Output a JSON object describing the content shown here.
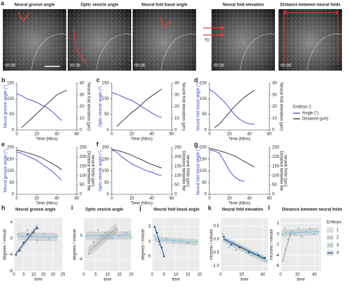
{
  "panel_a": {
    "label": "a",
    "images": [
      {
        "title": "Neural groove angle",
        "time": "00:35"
      },
      {
        "title": "Optic vesicle angle",
        "time": "00:35"
      },
      {
        "title": "Neural fold basal angle",
        "time": "00:35"
      },
      {
        "title": "Neural fold elevation",
        "time": "00:35",
        "annotation": "T0"
      },
      {
        "title": "Distance between neural folds",
        "time": "00:35"
      }
    ]
  },
  "embryo_legend": {
    "title": "Embryo",
    "items": [
      {
        "name": "1",
        "color": "#d9d9d9"
      },
      {
        "name": "2",
        "color": "#a9a9a9"
      },
      {
        "name": "3",
        "color": "#7fc4df"
      },
      {
        "name": "4",
        "color": "#1f5a99"
      }
    ]
  },
  "chart_data": [
    {
      "type": "line",
      "label": "b",
      "xlabel": "Time (Mins)",
      "ylabel": "Neural groove angle (°)",
      "y2label": [
        "Neural fold elevation (μm)"
      ],
      "x": [
        0,
        5,
        10,
        15,
        20,
        25,
        30,
        35,
        40,
        45,
        50
      ],
      "xlim": [
        0,
        60
      ],
      "xticks": [
        0,
        20,
        40,
        60
      ],
      "ylim": [
        0,
        150
      ],
      "yticks": [
        0,
        50,
        100,
        150
      ],
      "y2lim": [
        0,
        40
      ],
      "y2ticks": [
        0,
        10,
        20,
        30,
        40
      ],
      "series": [
        {
          "color": "#3c3cd8",
          "values": [
            115,
            110,
            100,
            95,
            88,
            80,
            72,
            60,
            45,
            30,
            null
          ]
        },
        {
          "color": "#222222",
          "axis": "y2",
          "values": [
            null,
            2,
            6,
            10,
            14,
            18,
            22,
            26,
            30,
            32,
            34
          ]
        }
      ]
    },
    {
      "type": "line",
      "label": "c",
      "xlabel": "Time (Mins)",
      "ylabel": "Optic vesicle angle (°)",
      "y2label": [
        "Neural fold elevation (μm)"
      ],
      "x": [
        0,
        5,
        10,
        15,
        20,
        25,
        30,
        35,
        40,
        45,
        50
      ],
      "xlim": [
        0,
        60
      ],
      "xticks": [
        0,
        20,
        40,
        60
      ],
      "ylim": [
        0,
        150
      ],
      "yticks": [
        0,
        50,
        100,
        150
      ],
      "y2lim": [
        0,
        40
      ],
      "y2ticks": [
        0,
        10,
        20,
        30,
        40
      ],
      "series": [
        {
          "color": "#3c3cd8",
          "values": [
            120,
            115,
            108,
            100,
            95,
            85,
            75,
            65,
            55,
            45,
            40
          ]
        },
        {
          "color": "#222222",
          "axis": "y2",
          "values": [
            null,
            3,
            7,
            11,
            15,
            18,
            22,
            26,
            29,
            32,
            35
          ]
        }
      ]
    },
    {
      "type": "line",
      "label": "d",
      "xlabel": "Time (Mins)",
      "ylabel": "Neural fold basal angle (°)",
      "y2label": [
        "Neural fold elevation (μm)"
      ],
      "x": [
        0,
        5,
        10,
        15,
        20,
        25,
        30,
        35,
        40,
        45,
        50
      ],
      "xlim": [
        0,
        60
      ],
      "xticks": [
        0,
        20,
        40,
        60
      ],
      "ylim": [
        0,
        150
      ],
      "yticks": [
        0,
        50,
        100,
        150
      ],
      "y2lim": [
        0,
        40
      ],
      "y2ticks": [
        0,
        10,
        20,
        30,
        40
      ],
      "legend_title": "Embryo 2",
      "series": [
        {
          "name": "Angle (°)",
          "color": "#3c3cd8",
          "values": [
            130,
            120,
            105,
            90,
            70,
            50,
            35,
            25,
            20,
            18,
            null
          ]
        },
        {
          "name": "Distance (μm)",
          "color": "#222222",
          "axis": "y2",
          "values": [
            null,
            2,
            5,
            10,
            15,
            20,
            24,
            28,
            31,
            34,
            null
          ]
        }
      ]
    },
    {
      "type": "line",
      "label": "e",
      "xlabel": "Time (Mins)",
      "ylabel": "Neural groove angle (°)",
      "y2label": [
        "Distance between the",
        "neural folds (μm)"
      ],
      "x": [
        0,
        5,
        10,
        15,
        20,
        25,
        30,
        35,
        40,
        45,
        50
      ],
      "xlim": [
        0,
        60
      ],
      "xticks": [
        0,
        20,
        40,
        60
      ],
      "ylim": [
        0,
        200
      ],
      "yticks": [
        0,
        50,
        100,
        150,
        200
      ],
      "y2lim": [
        0,
        250
      ],
      "y2ticks": [
        0,
        50,
        100,
        150,
        200,
        250
      ],
      "series": [
        {
          "color": "#3c3cd8",
          "values": [
            180,
            175,
            165,
            155,
            145,
            130,
            115,
            100,
            80,
            60,
            null
          ]
        },
        {
          "color": "#222222",
          "axis": "y2",
          "values": [
            235,
            230,
            222,
            215,
            205,
            195,
            180,
            165,
            150,
            130,
            null
          ]
        }
      ]
    },
    {
      "type": "line",
      "label": "f",
      "xlabel": "Time (Mins)",
      "ylabel": "Optic vesicle angle (°)",
      "y2label": [
        "Distance between the",
        "neural folds (μm)"
      ],
      "x": [
        0,
        5,
        10,
        15,
        20,
        25,
        30,
        35,
        40,
        45,
        50
      ],
      "xlim": [
        0,
        60
      ],
      "xticks": [
        0,
        20,
        40,
        60
      ],
      "ylim": [
        0,
        200
      ],
      "yticks": [
        0,
        50,
        100,
        150,
        200
      ],
      "y2lim": [
        0,
        250
      ],
      "y2ticks": [
        0,
        50,
        100,
        150,
        200,
        250
      ],
      "series": [
        {
          "color": "#3c3cd8",
          "values": [
            190,
            180,
            160,
            145,
            130,
            120,
            110,
            100,
            95,
            85,
            80
          ]
        },
        {
          "color": "#222222",
          "axis": "y2",
          "values": [
            240,
            235,
            228,
            218,
            208,
            195,
            185,
            170,
            160,
            150,
            140
          ]
        }
      ]
    },
    {
      "type": "line",
      "label": "g",
      "xlabel": "Time (Mins)",
      "ylabel": "Neural fold basal angle (°)",
      "y2label": [
        "Distance between the",
        "neural folds (μm)"
      ],
      "x": [
        0,
        5,
        10,
        15,
        20,
        25,
        30,
        35,
        40,
        45,
        50
      ],
      "xlim": [
        0,
        60
      ],
      "xticks": [
        0,
        20,
        40,
        60
      ],
      "ylim": [
        0,
        200
      ],
      "yticks": [
        0,
        50,
        100,
        150,
        200
      ],
      "y2lim": [
        0,
        250
      ],
      "y2ticks": [
        0,
        50,
        100,
        150,
        200,
        250
      ],
      "series": [
        {
          "color": "#3c3cd8",
          "values": [
            190,
            185,
            175,
            140,
            100,
            75,
            60,
            55,
            null,
            null,
            null
          ]
        },
        {
          "color": "#222222",
          "axis": "y2",
          "values": [
            245,
            240,
            232,
            225,
            215,
            205,
            190,
            175,
            160,
            145,
            null
          ]
        }
      ]
    },
    {
      "type": "scatter",
      "label": "h",
      "title": "Neural groove angle",
      "xlabel": "time",
      "ylabel": "degrees / minute",
      "xlim": [
        0,
        25
      ],
      "xticks": [
        0,
        5,
        10,
        15,
        20,
        25
      ],
      "ylim": [
        -8,
        5
      ],
      "yticks": [
        -8,
        -4,
        0,
        4
      ],
      "series": [
        {
          "color": "#7fc4df",
          "x": [
            2,
            5,
            7,
            9,
            12,
            15,
            18,
            22
          ],
          "values": [
            1,
            -1,
            2,
            0.5,
            -0.5,
            1,
            0,
            0.5
          ]
        },
        {
          "color": "#1f5a99",
          "x": [
            1,
            3,
            5,
            7,
            10,
            12
          ],
          "values": [
            -4,
            -3,
            -1,
            1,
            1.5,
            2.5
          ]
        }
      ]
    },
    {
      "type": "scatter",
      "label": "i",
      "title": "Optic vesicle angle",
      "xlabel": "time",
      "ylabel": "degrees / minute",
      "xlim": [
        0,
        20
      ],
      "xticks": [
        0,
        5,
        10,
        15,
        20
      ],
      "ylim": [
        -6,
        3
      ],
      "yticks": [
        -4,
        0
      ],
      "series": [
        {
          "color": "#a9a9a9",
          "x": [
            2,
            8,
            14
          ],
          "values": [
            -3,
            0,
            1
          ]
        },
        {
          "color": "#7fc4df",
          "x": [
            1,
            4,
            6,
            9,
            12,
            15,
            18,
            20
          ],
          "values": [
            0,
            -1,
            1,
            0.5,
            -0.5,
            0,
            0.5,
            -0.3
          ]
        }
      ]
    },
    {
      "type": "scatter",
      "label": "j",
      "title": "Neural fold basal angle",
      "xlabel": "time",
      "ylabel": "degrees / minute",
      "xlim": [
        0,
        20
      ],
      "xticks": [
        0,
        5,
        10,
        15,
        20
      ],
      "ylim": [
        -10,
        8
      ],
      "yticks": [
        -5,
        0,
        5
      ],
      "series": [
        {
          "color": "#7fc4df",
          "x": [
            1,
            3,
            6,
            9,
            12,
            15,
            19
          ],
          "values": [
            2,
            -1,
            1,
            0,
            0.5,
            -0.5,
            0
          ]
        },
        {
          "color": "#1f5a99",
          "x": [
            1,
            2,
            3,
            4,
            5
          ],
          "values": [
            5,
            3,
            0,
            -2,
            -5
          ]
        }
      ]
    },
    {
      "type": "scatter",
      "label": "k",
      "title": "Neural fold elevation",
      "xlabel": "time",
      "ylabel": "microns / minute",
      "xlim": [
        0,
        45
      ],
      "xticks": [
        0,
        20,
        40
      ],
      "ylim": [
        -1.2,
        0.8
      ],
      "yticks": [
        {
          "value": -1,
          "label": "-1.0"
        },
        -0.5,
        {
          "value": 0,
          "label": "0.0"
        },
        0.5
      ],
      "series": [
        {
          "color": "#7fc4df",
          "x": [
            2,
            5,
            8,
            12,
            15,
            20,
            25,
            30,
            35,
            40,
            44
          ],
          "values": [
            0.2,
            0,
            -0.3,
            -0.1,
            -0.4,
            -0.3,
            -0.5,
            -0.6,
            -0.5,
            -0.7,
            -0.8
          ]
        },
        {
          "color": "#1f5a99",
          "x": [
            3,
            10,
            18,
            27,
            36,
            42
          ],
          "values": [
            0.1,
            -0.2,
            -0.3,
            -0.5,
            -0.6,
            -0.7
          ]
        }
      ]
    },
    {
      "type": "scatter",
      "label": "l",
      "title": "Distance between neural folds",
      "xlabel": "time",
      "ylabel": "microns / minute",
      "xlim": [
        0,
        48
      ],
      "xticks": [
        0,
        20,
        40
      ],
      "ylim": [
        -7,
        3
      ],
      "yticks": [
        -6,
        -4,
        -2,
        0,
        2
      ],
      "series": [
        {
          "color": "#a9a9a9",
          "x": [
            3,
            6,
            9,
            12
          ],
          "values": [
            -5,
            -3,
            -1,
            0
          ]
        },
        {
          "color": "#7fc4df",
          "x": [
            2,
            5,
            9,
            13,
            17,
            21,
            25,
            30,
            35,
            40,
            45
          ],
          "values": [
            0,
            1,
            -1,
            0.5,
            0,
            1,
            -0.5,
            0.5,
            1,
            0,
            0.5
          ]
        }
      ]
    }
  ]
}
